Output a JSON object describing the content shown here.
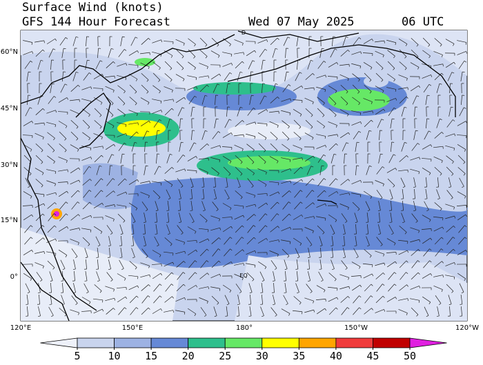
{
  "header": {
    "title": "Surface Wind (knots)",
    "subtitle": "GFS 144 Hour Forecast",
    "date": "Wed 07 May 2025",
    "time": "06 UTC"
  },
  "map": {
    "lat_labels": [
      "60°N",
      "45°N",
      "30°N",
      "15°N",
      "0°"
    ],
    "lon_labels": [
      "120°E",
      "150°E",
      "180°",
      "150°W",
      "120°W"
    ],
    "annotations": [
      "D",
      "EQ"
    ]
  },
  "colorbar": {
    "ticks": [
      5,
      10,
      15,
      20,
      25,
      30,
      35,
      40,
      45,
      50
    ],
    "colors": [
      "#eef1fa",
      "#c9d4ee",
      "#9db2e3",
      "#6689d6",
      "#2ebf8c",
      "#66e866",
      "#ffff00",
      "#ffa500",
      "#f03c3c",
      "#c00000",
      "#e020e0"
    ]
  }
}
